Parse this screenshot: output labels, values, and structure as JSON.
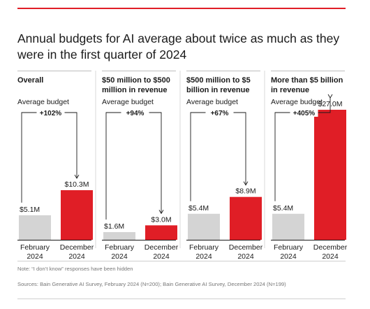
{
  "title": "Annual budgets for AI average about twice as much as they were in the first quarter of 2024",
  "note": "Note: “I don’t know” responses have been hidden",
  "sources": "Sources: Bain Generative AI Survey, February 2024 (N=200); Bain Generative AI Survey, December 2024 (N=199)",
  "colors": {
    "accent": "#e01e26",
    "before": "#d4d4d4",
    "axis": "#1a1a1a"
  },
  "chart_data": [
    {
      "type": "bar",
      "title": "Overall",
      "ylabel": "Average budget",
      "categories": [
        "February 2024",
        "December 2024"
      ],
      "values": [
        5.1,
        10.3
      ],
      "value_labels": [
        "$5.1M",
        "$10.3M"
      ],
      "change": "+102%"
    },
    {
      "type": "bar",
      "title": "$50 million to $500 million in revenue",
      "ylabel": "Average budget",
      "categories": [
        "February 2024",
        "December 2024"
      ],
      "values": [
        1.6,
        3.0
      ],
      "value_labels": [
        "$1.6M",
        "$3.0M"
      ],
      "change": "+94%"
    },
    {
      "type": "bar",
      "title": "$500 million to $5 billion in revenue",
      "ylabel": "Average budget",
      "categories": [
        "February 2024",
        "December 2024"
      ],
      "values": [
        5.4,
        8.9
      ],
      "value_labels": [
        "$5.4M",
        "$8.9M"
      ],
      "change": "+67%"
    },
    {
      "type": "bar",
      "title": "More than $5 billion in revenue",
      "ylabel": "Average budget",
      "categories": [
        "February 2024",
        "December 2024"
      ],
      "values": [
        5.4,
        27.0
      ],
      "value_labels": [
        "$5.4M",
        "$27.0M"
      ],
      "change": "+405%"
    }
  ]
}
